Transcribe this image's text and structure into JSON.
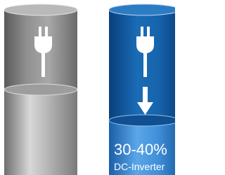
{
  "illustration": {
    "saving": "30-40%",
    "technology": "DC-Inverter"
  }
}
